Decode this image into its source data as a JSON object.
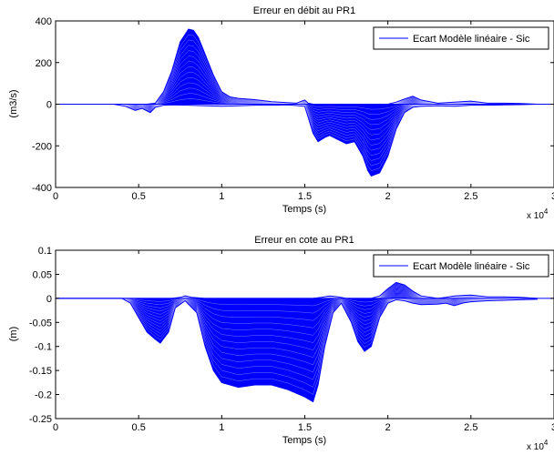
{
  "figure": {
    "background": "#ffffff"
  },
  "chart_data": [
    {
      "type": "line",
      "title": "Erreur en débit au PR1",
      "xlabel": "Temps (s)",
      "ylabel": "(m3/s)",
      "x_exponent": "x 10",
      "x_exponent_power": "4",
      "xlim": [
        0,
        3
      ],
      "ylim": [
        -400,
        400
      ],
      "xticks": [
        0,
        0.5,
        1,
        1.5,
        2,
        2.5,
        3
      ],
      "xtick_labels": [
        "0",
        "0.5",
        "1",
        "1.5",
        "2",
        "2.5",
        "3"
      ],
      "yticks": [
        -400,
        -200,
        0,
        200,
        400
      ],
      "ytick_labels": [
        "-400",
        "-200",
        "0",
        "200",
        "400"
      ],
      "legend": {
        "label": "Ecart Modèle linéaire - Sic",
        "placement": "top-right"
      },
      "grid": false,
      "color": "#0000ff",
      "series": [
        {
          "name": "Ecart Modèle linéaire - Sic",
          "role": "upper",
          "x": [
            0,
            0.35,
            0.42,
            0.5,
            0.55,
            0.6,
            0.65,
            0.7,
            0.75,
            0.8,
            0.83,
            0.86,
            0.9,
            0.95,
            1.0,
            1.05,
            1.1,
            1.2,
            1.3,
            1.45,
            1.5,
            1.52,
            1.55,
            1.6,
            1.7,
            1.8,
            1.9,
            2.0,
            2.05,
            2.1,
            2.15,
            2.2,
            2.3,
            2.4,
            2.5,
            2.6,
            2.7,
            2.8,
            2.9
          ],
          "y": [
            0,
            0,
            0,
            0,
            0,
            5,
            60,
            160,
            300,
            360,
            355,
            320,
            240,
            140,
            60,
            35,
            28,
            22,
            12,
            5,
            20,
            5,
            0,
            0,
            0,
            0,
            0,
            0,
            10,
            25,
            38,
            20,
            5,
            10,
            15,
            5,
            5,
            3,
            0
          ]
        },
        {
          "name": "Ecart Modèle linéaire - Sic",
          "role": "lower",
          "x": [
            0,
            0.35,
            0.42,
            0.48,
            0.52,
            0.57,
            0.6,
            0.65,
            0.7,
            0.8,
            0.9,
            1.0,
            1.1,
            1.2,
            1.3,
            1.4,
            1.5,
            1.55,
            1.58,
            1.62,
            1.65,
            1.7,
            1.75,
            1.8,
            1.85,
            1.88,
            1.9,
            1.95,
            2.0,
            2.05,
            2.1,
            2.15,
            2.2,
            2.3,
            2.4,
            2.5,
            2.6,
            2.7,
            2.8,
            2.9
          ],
          "y": [
            0,
            0,
            -10,
            -30,
            -20,
            -40,
            -15,
            -5,
            -3,
            -5,
            -8,
            -10,
            -8,
            -5,
            -5,
            -3,
            -10,
            -140,
            -180,
            -160,
            -150,
            -170,
            -190,
            -180,
            -250,
            -320,
            -345,
            -330,
            -250,
            -120,
            -40,
            -15,
            -10,
            -8,
            -10,
            -5,
            -5,
            -3,
            -2,
            0
          ]
        }
      ]
    },
    {
      "type": "line",
      "title": "Erreur en cote au PR1",
      "xlabel": "Temps (s)",
      "ylabel": "(m)",
      "x_exponent": "x 10",
      "x_exponent_power": "4",
      "xlim": [
        0,
        3
      ],
      "ylim": [
        -0.25,
        0.1
      ],
      "xticks": [
        0,
        0.5,
        1,
        1.5,
        2,
        2.5,
        3
      ],
      "xtick_labels": [
        "0",
        "0.5",
        "1",
        "1.5",
        "2",
        "2.5",
        "3"
      ],
      "yticks": [
        -0.25,
        -0.2,
        -0.15,
        -0.1,
        -0.05,
        0,
        0.05,
        0.1
      ],
      "ytick_labels": [
        "-0.25",
        "-0.2",
        "-0.15",
        "-0.1",
        "-0.05",
        "0",
        "0.05",
        "0.1"
      ],
      "legend": {
        "label": "Ecart Modèle linéaire - Sic",
        "placement": "top-right"
      },
      "grid": false,
      "color": "#0000ff",
      "series": [
        {
          "name": "Ecart Modèle linéaire - Sic",
          "role": "upper",
          "x": [
            0,
            0.4,
            0.7,
            0.75,
            0.78,
            0.82,
            0.9,
            1.0,
            1.5,
            1.55,
            1.6,
            1.65,
            1.7,
            1.75,
            1.9,
            1.95,
            2.0,
            2.05,
            2.1,
            2.15,
            2.2,
            2.3,
            2.35,
            2.4,
            2.5,
            2.6,
            2.7,
            2.8,
            2.9
          ],
          "y": [
            0,
            0,
            0,
            0.002,
            0.005,
            0.002,
            0,
            0,
            0,
            0,
            0.002,
            0.005,
            0.003,
            0,
            0,
            0.005,
            0.02,
            0.033,
            0.028,
            0.015,
            0.005,
            0,
            0.002,
            0.005,
            0.007,
            0.003,
            0.003,
            0.002,
            0
          ]
        },
        {
          "name": "Ecart Modèle linéaire - Sic",
          "role": "lower",
          "x": [
            0,
            0.4,
            0.45,
            0.5,
            0.55,
            0.6,
            0.63,
            0.68,
            0.72,
            0.78,
            0.85,
            0.9,
            0.95,
            1.0,
            1.1,
            1.2,
            1.3,
            1.4,
            1.5,
            1.55,
            1.58,
            1.62,
            1.67,
            1.72,
            1.78,
            1.82,
            1.86,
            1.9,
            1.95,
            2.0,
            2.05,
            2.1,
            2.15,
            2.2,
            2.3,
            2.35,
            2.4,
            2.45,
            2.5,
            2.6,
            2.7,
            2.8,
            2.9
          ],
          "y": [
            0,
            0,
            -0.01,
            -0.04,
            -0.07,
            -0.085,
            -0.093,
            -0.07,
            -0.02,
            -0.005,
            -0.03,
            -0.1,
            -0.15,
            -0.175,
            -0.185,
            -0.18,
            -0.18,
            -0.19,
            -0.205,
            -0.215,
            -0.18,
            -0.1,
            -0.03,
            -0.01,
            -0.05,
            -0.09,
            -0.11,
            -0.1,
            -0.04,
            -0.01,
            -0.003,
            -0.005,
            -0.01,
            -0.013,
            -0.012,
            -0.01,
            -0.015,
            -0.01,
            -0.007,
            -0.005,
            -0.004,
            -0.003,
            -0.002
          ]
        }
      ]
    }
  ]
}
